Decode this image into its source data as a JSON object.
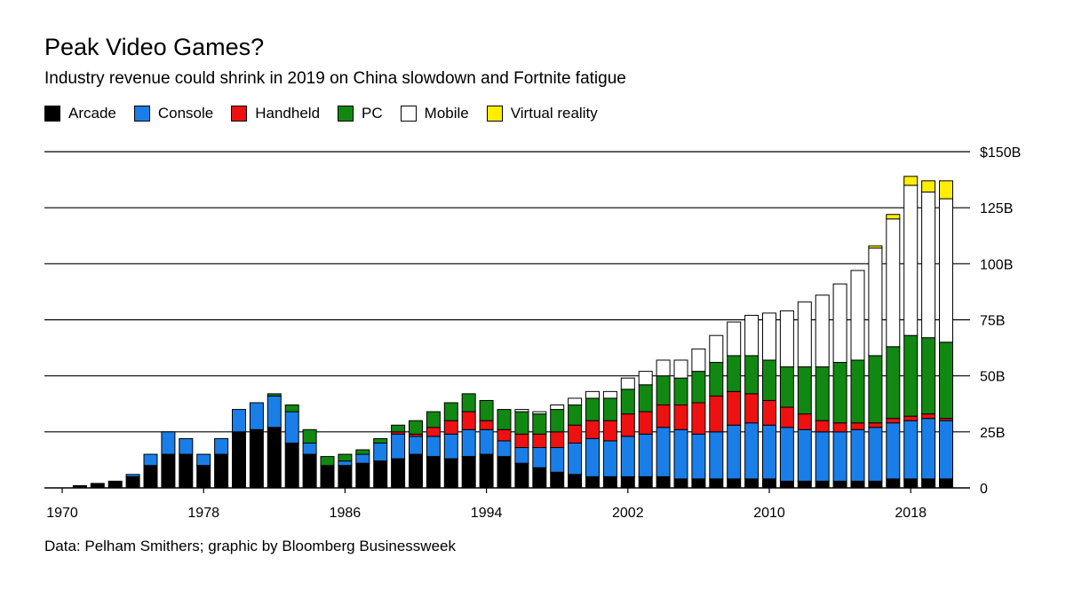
{
  "title": "Peak Video Games?",
  "subtitle": "Industry revenue could shrink in 2019 on China slowdown and Fortnite fatigue",
  "source": "Data: Pelham Smithers; graphic by Bloomberg Businessweek",
  "colors": {
    "Arcade": "#000000",
    "Console": "#1a7ee8",
    "Handheld": "#ee1111",
    "PC": "#118811",
    "Mobile": "#ffffff",
    "Virtual reality": "#ffee00"
  },
  "chart_data": {
    "type": "bar",
    "stacked": true,
    "ylim": [
      0,
      150
    ],
    "y_ticks": [
      0,
      25,
      50,
      75,
      100,
      125,
      150
    ],
    "y_tick_labels": [
      "0",
      "25B",
      "50B",
      "75B",
      "100B",
      "125B",
      "$150B"
    ],
    "x_ticks": [
      1970,
      1978,
      1986,
      1994,
      2002,
      2010,
      2018
    ],
    "x_tick_labels": [
      "1970",
      "1978",
      "1986",
      "1994",
      "2002",
      "2010",
      "2018"
    ],
    "grid": true,
    "legend_position": "top-left",
    "categories": [
      1970,
      1971,
      1972,
      1973,
      1974,
      1975,
      1976,
      1977,
      1978,
      1979,
      1980,
      1981,
      1982,
      1983,
      1984,
      1985,
      1986,
      1987,
      1988,
      1989,
      1990,
      1991,
      1992,
      1993,
      1994,
      1995,
      1996,
      1997,
      1998,
      1999,
      2000,
      2001,
      2002,
      2003,
      2004,
      2005,
      2006,
      2007,
      2008,
      2009,
      2010,
      2011,
      2012,
      2013,
      2014,
      2015,
      2016,
      2017,
      2018,
      2019,
      2020
    ],
    "series": [
      {
        "name": "Arcade",
        "values": [
          0,
          1,
          2,
          3,
          5,
          10,
          15,
          15,
          10,
          15,
          25,
          26,
          27,
          20,
          15,
          10,
          10,
          11,
          12,
          13,
          15,
          14,
          13,
          14,
          15,
          14,
          11,
          9,
          7,
          6,
          5,
          5,
          5,
          5,
          5,
          4,
          4,
          4,
          4,
          4,
          4,
          3,
          3,
          3,
          3,
          3,
          3,
          4,
          4,
          4,
          4
        ]
      },
      {
        "name": "Console",
        "values": [
          0,
          0,
          0,
          0,
          1,
          5,
          10,
          7,
          5,
          7,
          10,
          12,
          14,
          14,
          5,
          0,
          2,
          4,
          8,
          11,
          8,
          9,
          11,
          12,
          11,
          7,
          7,
          9,
          11,
          14,
          17,
          16,
          18,
          19,
          22,
          22,
          20,
          21,
          24,
          25,
          24,
          24,
          23,
          22,
          22,
          23,
          24,
          25,
          26,
          27,
          26
        ]
      },
      {
        "name": "Handheld",
        "values": [
          0,
          0,
          0,
          0,
          0,
          0,
          0,
          0,
          0,
          0,
          0,
          0,
          0,
          0,
          0,
          0,
          0,
          0,
          0,
          1,
          1,
          4,
          6,
          8,
          4,
          5,
          6,
          6,
          7,
          8,
          8,
          9,
          10,
          10,
          10,
          11,
          14,
          16,
          15,
          13,
          11,
          9,
          7,
          5,
          4,
          3,
          2,
          2,
          2,
          2,
          1
        ]
      },
      {
        "name": "PC",
        "values": [
          0,
          0,
          0,
          0,
          0,
          0,
          0,
          0,
          0,
          0,
          0,
          0,
          1,
          3,
          6,
          4,
          3,
          2,
          2,
          3,
          6,
          7,
          8,
          8,
          9,
          9,
          10,
          9,
          10,
          9,
          10,
          10,
          11,
          12,
          13,
          12,
          14,
          15,
          16,
          17,
          18,
          18,
          21,
          24,
          27,
          28,
          30,
          32,
          36,
          34,
          34
        ]
      },
      {
        "name": "Mobile",
        "values": [
          0,
          0,
          0,
          0,
          0,
          0,
          0,
          0,
          0,
          0,
          0,
          0,
          0,
          0,
          0,
          0,
          0,
          0,
          0,
          0,
          0,
          0,
          0,
          0,
          0,
          0,
          1,
          1,
          2,
          3,
          3,
          3,
          5,
          6,
          7,
          8,
          10,
          12,
          15,
          18,
          21,
          25,
          29,
          32,
          35,
          40,
          48,
          57,
          67,
          65,
          64
        ]
      },
      {
        "name": "Virtual reality",
        "values": [
          0,
          0,
          0,
          0,
          0,
          0,
          0,
          0,
          0,
          0,
          0,
          0,
          0,
          0,
          0,
          0,
          0,
          0,
          0,
          0,
          0,
          0,
          0,
          0,
          0,
          0,
          0,
          0,
          0,
          0,
          0,
          0,
          0,
          0,
          0,
          0,
          0,
          0,
          0,
          0,
          0,
          0,
          0,
          0,
          0,
          0,
          1,
          2,
          4,
          5,
          8
        ]
      }
    ]
  }
}
